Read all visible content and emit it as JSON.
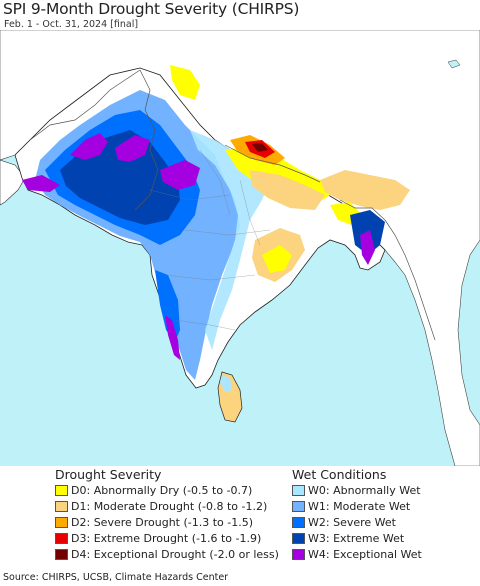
{
  "title": "SPI 9-Month Drought Severity (CHIRPS)",
  "subtitle": "Feb. 1 - Oct. 31, 2024 [final]",
  "colors": {
    "ocean": "#bff2f8",
    "land_outside": "#ffffff",
    "border": "#555555",
    "coast": "#222222"
  },
  "legend": {
    "drought": {
      "heading": "Drought Severity",
      "items": [
        {
          "code": "D0:",
          "label": "Abnormally Dry (-0.5 to -0.7)",
          "color": "#ffff00"
        },
        {
          "code": "D1:",
          "label": "Moderate Drought (-0.8 to -1.2)",
          "color": "#fcd37f"
        },
        {
          "code": "D2:",
          "label": "Severe Drought (-1.3 to -1.5)",
          "color": "#ffaa00"
        },
        {
          "code": "D3:",
          "label": "Extreme Drought (-1.6 to -1.9)",
          "color": "#e60000"
        },
        {
          "code": "D4:",
          "label": "Exceptional Drought (-2.0 or less)",
          "color": "#730000"
        }
      ]
    },
    "wet": {
      "heading": "Wet Conditions",
      "items": [
        {
          "code": "W0:",
          "label": "Abnormally Wet",
          "color": "#aae6ff"
        },
        {
          "code": "W1:",
          "label": "Moderate Wet",
          "color": "#73b2ff"
        },
        {
          "code": "W2:",
          "label": "Severe Wet",
          "color": "#0070ff"
        },
        {
          "code": "W3:",
          "label": "Extreme Wet",
          "color": "#0043b0"
        },
        {
          "code": "W4:",
          "label": "Exceptional Wet",
          "color": "#a400e0"
        }
      ]
    }
  },
  "source": "Source: CHIRPS, UCSB, Climate Hazards Center"
}
